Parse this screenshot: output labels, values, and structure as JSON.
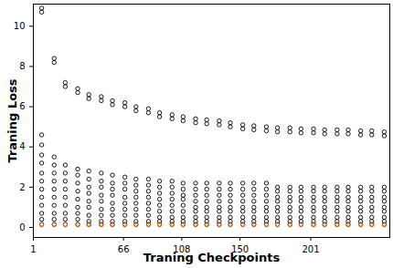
{
  "chart_data": {
    "type": "scatter",
    "xlabel": "Traning Checkpoints",
    "ylabel": "Traning Loss",
    "x": [
      7,
      16,
      24,
      33,
      41,
      50,
      58,
      67,
      75,
      84,
      92,
      101,
      109,
      118,
      126,
      135,
      143,
      152,
      160,
      169,
      177,
      186,
      194,
      203,
      211,
      220,
      228,
      237,
      245,
      254
    ],
    "series": [
      {
        "color": "#000000",
        "marker": "circle",
        "values": [
          [
            10.9,
            10.7,
            4.6,
            4.1,
            3.6,
            3.2,
            2.7,
            2.3,
            1.9,
            1.5,
            1.1,
            0.7,
            0.4,
            0.15
          ],
          [
            8.4,
            8.2,
            3.5,
            3.1,
            2.7,
            2.3,
            1.9,
            1.5,
            1.1,
            0.7,
            0.4,
            0.15
          ],
          [
            7.2,
            7.0,
            3.1,
            2.7,
            2.3,
            1.9,
            1.5,
            1.1,
            0.7,
            0.4,
            0.15
          ],
          [
            6.9,
            6.7,
            2.9,
            2.6,
            2.2,
            1.8,
            1.4,
            1.0,
            0.7,
            0.4,
            0.15
          ],
          [
            6.6,
            6.4,
            2.8,
            2.4,
            2.0,
            1.7,
            1.3,
            1.0,
            0.6,
            0.3,
            0.15
          ],
          [
            6.5,
            6.3,
            2.7,
            2.3,
            2.0,
            1.6,
            1.3,
            0.9,
            0.6,
            0.3,
            0.15
          ],
          [
            6.3,
            6.1,
            2.6,
            2.2,
            1.9,
            1.6,
            1.2,
            0.9,
            0.6,
            0.3,
            0.15
          ],
          [
            6.2,
            6.0,
            2.5,
            2.2,
            1.9,
            1.5,
            1.2,
            0.9,
            0.6,
            0.3,
            0.15
          ],
          [
            6.0,
            5.8,
            2.4,
            2.1,
            1.8,
            1.5,
            1.2,
            0.9,
            0.6,
            0.3,
            0.15
          ],
          [
            5.9,
            5.7,
            2.4,
            2.1,
            1.8,
            1.5,
            1.2,
            0.9,
            0.6,
            0.3,
            0.15
          ],
          [
            5.7,
            5.5,
            2.3,
            2.0,
            1.7,
            1.4,
            1.1,
            0.8,
            0.5,
            0.3,
            0.15
          ],
          [
            5.6,
            5.4,
            2.3,
            2.0,
            1.7,
            1.4,
            1.1,
            0.8,
            0.5,
            0.3,
            0.15
          ],
          [
            5.5,
            5.3,
            2.2,
            1.9,
            1.6,
            1.4,
            1.1,
            0.8,
            0.5,
            0.3,
            0.15
          ],
          [
            5.4,
            5.2,
            2.2,
            1.9,
            1.6,
            1.3,
            1.0,
            0.8,
            0.5,
            0.3,
            0.15
          ],
          [
            5.35,
            5.15,
            2.2,
            1.9,
            1.6,
            1.3,
            1.0,
            0.8,
            0.5,
            0.3,
            0.15
          ],
          [
            5.3,
            5.1,
            2.2,
            1.9,
            1.6,
            1.3,
            1.0,
            0.8,
            0.5,
            0.3,
            0.15
          ],
          [
            5.2,
            5.0,
            2.2,
            1.9,
            1.6,
            1.3,
            1.0,
            0.8,
            0.5,
            0.3,
            0.15
          ],
          [
            5.1,
            4.9,
            2.2,
            1.9,
            1.6,
            1.3,
            1.0,
            0.8,
            0.5,
            0.3,
            0.15
          ],
          [
            5.05,
            4.85,
            2.2,
            1.9,
            1.6,
            1.3,
            1.0,
            0.8,
            0.5,
            0.3,
            0.15
          ],
          [
            5.0,
            4.8,
            2.2,
            1.9,
            1.6,
            1.3,
            1.0,
            0.8,
            0.5,
            0.3,
            0.15
          ],
          [
            4.95,
            4.75,
            2.0,
            1.8,
            1.5,
            1.3,
            1.0,
            0.8,
            0.5,
            0.3,
            0.15
          ],
          [
            4.95,
            4.75,
            2.0,
            1.8,
            1.5,
            1.3,
            1.0,
            0.8,
            0.5,
            0.3,
            0.15
          ],
          [
            4.9,
            4.7,
            2.0,
            1.8,
            1.5,
            1.3,
            1.0,
            0.8,
            0.5,
            0.3,
            0.15
          ],
          [
            4.9,
            4.7,
            2.0,
            1.8,
            1.5,
            1.3,
            1.0,
            0.8,
            0.5,
            0.3,
            0.15
          ],
          [
            4.85,
            4.65,
            2.0,
            1.8,
            1.5,
            1.3,
            1.0,
            0.8,
            0.5,
            0.3,
            0.15
          ],
          [
            4.85,
            4.65,
            2.0,
            1.8,
            1.5,
            1.3,
            1.0,
            0.8,
            0.5,
            0.3,
            0.15
          ],
          [
            4.85,
            4.65,
            2.0,
            1.8,
            1.5,
            1.3,
            1.0,
            0.8,
            0.5,
            0.3,
            0.15
          ],
          [
            4.8,
            4.6,
            2.0,
            1.8,
            1.5,
            1.3,
            1.0,
            0.8,
            0.5,
            0.3,
            0.15
          ],
          [
            4.8,
            4.6,
            2.0,
            1.8,
            1.5,
            1.3,
            1.0,
            0.8,
            0.5,
            0.3,
            0.15
          ],
          [
            4.75,
            4.55,
            2.0,
            1.8,
            1.5,
            1.3,
            1.0,
            0.8,
            0.5,
            0.3,
            0.15
          ]
        ]
      },
      {
        "color": "#ff7f0e",
        "marker": "circle",
        "values": [
          [
            0.12
          ],
          [
            0.12
          ],
          [
            0.12
          ],
          [
            0.12
          ],
          [
            0.12
          ],
          [
            0.12
          ],
          [
            0.12
          ],
          [
            0.12
          ],
          [
            0.12
          ],
          [
            0.12
          ],
          [
            0.12
          ],
          [
            0.12
          ],
          [
            0.12
          ],
          [
            0.12
          ],
          [
            0.12
          ],
          [
            0.12
          ],
          [
            0.12
          ],
          [
            0.12
          ],
          [
            0.12
          ],
          [
            0.12
          ],
          [
            0.12
          ],
          [
            0.12
          ],
          [
            0.12
          ],
          [
            0.12
          ],
          [
            0.12
          ],
          [
            0.12
          ],
          [
            0.12
          ],
          [
            0.12
          ],
          [
            0.12
          ],
          [
            0.12
          ]
        ]
      }
    ],
    "xlim": [
      1,
      258
    ],
    "xticks": [
      1,
      66,
      108,
      150,
      201
    ],
    "ylim": [
      -0.5,
      11.1
    ],
    "yticks": [
      0,
      2,
      4,
      6,
      8,
      10
    ],
    "grid": false
  }
}
